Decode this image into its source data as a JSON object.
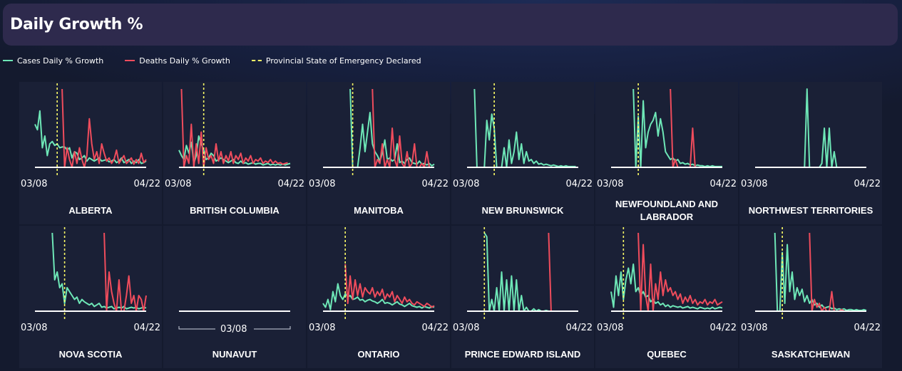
{
  "header": {
    "title": "Daily Growth %"
  },
  "legend": [
    {
      "label": "Cases Daily % Growth",
      "color": "#6ee7b7",
      "dashed": false
    },
    {
      "label": "Deaths Daily % Growth",
      "color": "#ef4c5c",
      "dashed": false
    },
    {
      "label": "Provincial State of Emergency Declared",
      "color": "#ffff66",
      "dashed": true
    }
  ],
  "chart_data": [
    {
      "type": "line",
      "title": "ALBERTA",
      "x_start": "03/08",
      "x_end": "04/22",
      "emergency_day": 9,
      "series": [
        {
          "name": "Cases Daily % Growth",
          "color": "#6ee7b7",
          "start_day": 0,
          "values": [
            0.55,
            0.48,
            0.72,
            0.25,
            0.4,
            0.15,
            0.3,
            0.33,
            0.28,
            0.3,
            0.25,
            0.26,
            0.26,
            0.22,
            0.25,
            0.12,
            0.2,
            0.18,
            0.1,
            0.12,
            0.15,
            0.08,
            0.12,
            0.1,
            0.08,
            0.1,
            0.12,
            0.08,
            0.09,
            0.1,
            0.07,
            0.08,
            0.1,
            0.06,
            0.08,
            0.12,
            0.06,
            0.08,
            0.1,
            0.05,
            0.08,
            0.06,
            0.1,
            0.05,
            0.06,
            0.08
          ]
        },
        {
          "name": "Deaths Daily % Growth",
          "color": "#ef4c5c",
          "start_day": 11,
          "values": [
            1.0,
            0.0,
            0.25,
            0.1,
            0.0,
            0.2,
            0.05,
            0.25,
            0.1,
            0.0,
            0.15,
            0.62,
            0.3,
            0.1,
            0.2,
            0.05,
            0.3,
            0.18,
            0.08,
            0.12,
            0.05,
            0.1,
            0.22,
            0.05,
            0.1,
            0.15,
            0.05,
            0.08,
            0.12,
            0.04,
            0.1,
            0.05,
            0.18,
            0.06,
            0.1
          ]
        }
      ]
    },
    {
      "type": "line",
      "title": "BRITISH COLUMBIA",
      "x_start": "03/08",
      "x_end": "04/22",
      "emergency_day": 10,
      "series": [
        {
          "name": "Cases Daily % Growth",
          "color": "#6ee7b7",
          "start_day": 0,
          "values": [
            0.22,
            0.15,
            0.1,
            0.28,
            0.18,
            0.32,
            0.05,
            0.15,
            0.4,
            0.3,
            0.22,
            0.1,
            0.12,
            0.18,
            0.15,
            0.08,
            0.1,
            0.12,
            0.1,
            0.08,
            0.06,
            0.08,
            0.1,
            0.06,
            0.05,
            0.08,
            0.05,
            0.06,
            0.04,
            0.05,
            0.06,
            0.04,
            0.05,
            0.05,
            0.03,
            0.04,
            0.05,
            0.03,
            0.04,
            0.03,
            0.04,
            0.03,
            0.04,
            0.03,
            0.04,
            0.05
          ]
        },
        {
          "name": "Deaths Daily % Growth",
          "color": "#ef4c5c",
          "start_day": 1,
          "values": [
            1.0,
            0.0,
            0.15,
            0.05,
            0.55,
            0.0,
            0.3,
            0.05,
            0.45,
            0.0,
            0.25,
            0.1,
            0.15,
            0.05,
            0.3,
            0.08,
            0.2,
            0.05,
            0.15,
            0.08,
            0.2,
            0.05,
            0.15,
            0.1,
            0.18,
            0.05,
            0.12,
            0.08,
            0.15,
            0.05,
            0.1,
            0.08,
            0.12,
            0.05,
            0.08,
            0.06,
            0.1,
            0.05,
            0.08,
            0.05,
            0.06,
            0.04,
            0.05,
            0.06
          ]
        }
      ]
    },
    {
      "type": "line",
      "title": "MANITOBA",
      "x_start": "03/08",
      "x_end": "04/22",
      "emergency_day": 12,
      "series": [
        {
          "name": "Cases Daily % Growth",
          "color": "#6ee7b7",
          "start_day": 11,
          "values": [
            1.0,
            0.0,
            0.0,
            0.0,
            0.25,
            0.55,
            0.2,
            0.45,
            0.7,
            0.3,
            0.2,
            0.15,
            0.08,
            0.18,
            0.35,
            0.1,
            0.12,
            0.08,
            0.1,
            0.3,
            0.06,
            0.08,
            0.05,
            0.1,
            0.12,
            0.06,
            0.05,
            0.04,
            0.08,
            0.04,
            0.05,
            0.03,
            0.05,
            0.02,
            0.04
          ]
        },
        {
          "name": "Deaths Daily % Growth",
          "color": "#ef4c5c",
          "start_day": 20,
          "values": [
            1.0,
            0.0,
            0.1,
            0.05,
            0.3,
            0.0,
            0.1,
            0.0,
            0.5,
            0.1,
            0.0,
            0.4,
            0.05,
            0.0,
            0.2,
            0.0,
            0.05,
            0.3,
            0.0,
            0.0,
            0.05,
            0.0,
            0.2,
            0.0,
            0.0,
            0.0
          ]
        }
      ]
    },
    {
      "type": "line",
      "title": "NEW BRUNSWICK",
      "x_start": "03/08",
      "x_end": "04/22",
      "emergency_day": 11,
      "series": [
        {
          "name": "Cases Daily % Growth",
          "color": "#6ee7b7",
          "start_day": 3,
          "values": [
            1.0,
            0.0,
            0.0,
            0.0,
            0.0,
            0.6,
            0.35,
            0.68,
            0.5,
            0.0,
            0.0,
            0.0,
            0.25,
            0.0,
            0.35,
            0.05,
            0.2,
            0.45,
            0.1,
            0.3,
            0.05,
            0.2,
            0.08,
            0.1,
            0.05,
            0.08,
            0.04,
            0.05,
            0.03,
            0.04,
            0.03,
            0.02,
            0.03,
            0.02,
            0.01,
            0.02,
            0.01,
            0.02,
            0.01,
            0.01,
            0.01,
            0.01
          ]
        }
      ]
    },
    {
      "type": "line",
      "title": "NEWFOUNDLAND AND\nLABRADOR",
      "x_start": "03/08",
      "x_end": "04/22",
      "emergency_day": 11,
      "series": [
        {
          "name": "Cases Daily % Growth",
          "color": "#6ee7b7",
          "start_day": 9,
          "values": [
            1.0,
            0.0,
            0.65,
            0.0,
            0.85,
            0.25,
            0.45,
            0.55,
            0.6,
            0.7,
            0.4,
            0.62,
            0.45,
            0.2,
            0.15,
            0.1,
            0.12,
            0.08,
            0.1,
            0.05,
            0.06,
            0.04,
            0.05,
            0.03,
            0.04,
            0.02,
            0.03,
            0.02,
            0.02,
            0.01,
            0.02,
            0.01,
            0.02,
            0.01,
            0.01,
            0.01,
            0.01
          ]
        },
        {
          "name": "Deaths Daily % Growth",
          "color": "#ef4c5c",
          "start_day": 24,
          "values": [
            1.0,
            0.0,
            0.1,
            0.0,
            0.0,
            0.0,
            0.0,
            0.0,
            0.0,
            0.5,
            0.0,
            0.0,
            0.0,
            0.0,
            0.0,
            0.0,
            0.0,
            0.0,
            0.0,
            0.0,
            0.0,
            0.0
          ]
        }
      ]
    },
    {
      "type": "line",
      "title": "NORTHWEST TERRITORIES",
      "x_start": "03/08",
      "x_end": "04/22",
      "emergency_day": null,
      "series": [
        {
          "name": "Cases Daily % Growth",
          "color": "#6ee7b7",
          "start_day": 0,
          "values": [
            0,
            0,
            0,
            0,
            0,
            0,
            0,
            0,
            0,
            0,
            0,
            0,
            0,
            0,
            0,
            0,
            0,
            0,
            0,
            0,
            0,
            1.0,
            0,
            0,
            0,
            0,
            0,
            0.05,
            0.5,
            0,
            0.5,
            0,
            0.2,
            0,
            0,
            0,
            0,
            0,
            0,
            0,
            0,
            0,
            0,
            0,
            0,
            0
          ]
        }
      ]
    },
    {
      "type": "line",
      "title": "NOVA SCOTIA",
      "x_start": "03/08",
      "x_end": "04/22",
      "emergency_day": 12,
      "series": [
        {
          "name": "Cases Daily % Growth",
          "color": "#6ee7b7",
          "start_day": 7,
          "values": [
            1.0,
            0.4,
            0.5,
            0.3,
            0.35,
            0.1,
            0.3,
            0.25,
            0.2,
            0.15,
            0.18,
            0.1,
            0.15,
            0.12,
            0.1,
            0.08,
            0.1,
            0.06,
            0.08,
            0.1,
            0.05,
            0.06,
            0.04,
            0.05,
            0.06,
            0.03,
            0.04,
            0.05,
            0.04,
            0.06,
            0.03,
            0.04,
            0.05,
            0.04,
            0.05,
            0.03,
            0.04,
            0.05,
            0.04
          ]
        },
        {
          "name": "Deaths Daily % Growth",
          "color": "#ef4c5c",
          "start_day": 28,
          "values": [
            1.0,
            0.0,
            0.5,
            0.25,
            0.1,
            0.0,
            0.4,
            0.0,
            0.0,
            0.2,
            0.45,
            0.1,
            0.2,
            0.0,
            0.2,
            0.15,
            0.0,
            0.2
          ]
        }
      ]
    },
    {
      "type": "line",
      "title": "NUNAVUT",
      "x_start": "03/08",
      "x_end": "",
      "emergency_day": null,
      "series": []
    },
    {
      "type": "line",
      "title": "ONTARIO",
      "x_start": "03/08",
      "x_end": "04/22",
      "emergency_day": 9,
      "series": [
        {
          "name": "Cases Daily % Growth",
          "color": "#6ee7b7",
          "start_day": 0,
          "values": [
            0.1,
            0.05,
            0.15,
            0.02,
            0.25,
            0.12,
            0.35,
            0.2,
            0.15,
            0.22,
            0.18,
            0.2,
            0.15,
            0.16,
            0.18,
            0.14,
            0.15,
            0.12,
            0.14,
            0.15,
            0.13,
            0.12,
            0.1,
            0.12,
            0.15,
            0.1,
            0.11,
            0.1,
            0.08,
            0.1,
            0.12,
            0.09,
            0.08,
            0.06,
            0.08,
            0.1,
            0.07,
            0.06,
            0.05,
            0.06,
            0.04,
            0.06,
            0.05,
            0.04,
            0.06,
            0.05
          ]
        },
        {
          "name": "Deaths Daily % Growth",
          "color": "#ef4c5c",
          "start_day": 9,
          "values": [
            0.6,
            0.1,
            0.45,
            0.15,
            0.4,
            0.2,
            0.35,
            0.18,
            0.3,
            0.25,
            0.22,
            0.3,
            0.18,
            0.25,
            0.2,
            0.28,
            0.15,
            0.22,
            0.18,
            0.25,
            0.12,
            0.2,
            0.15,
            0.1,
            0.18,
            0.12,
            0.15,
            0.1,
            0.08,
            0.12,
            0.1,
            0.08,
            0.06,
            0.1,
            0.08,
            0.05,
            0.07
          ]
        }
      ]
    },
    {
      "type": "line",
      "title": "PRINCE EDWARD ISLAND",
      "x_start": "03/08",
      "x_end": "04/22",
      "emergency_day": 7,
      "series": [
        {
          "name": "Cases Daily % Growth",
          "color": "#6ee7b7",
          "start_day": 7,
          "values": [
            1.0,
            0.95,
            0.0,
            0.15,
            0.0,
            0.3,
            0.0,
            0.5,
            0.0,
            0.4,
            0.0,
            0.45,
            0.0,
            0.4,
            0.0,
            0.2,
            0.0,
            0.05,
            0.0,
            0.0,
            0.03,
            0.0,
            0.02,
            0.0,
            0.0,
            0.01,
            0.0,
            0.0,
            0.0,
            0.0,
            0.0,
            0.0,
            0.0,
            0.0,
            0.0,
            0.0,
            0.0,
            0.0,
            0.0
          ]
        },
        {
          "name": "Deaths Daily % Growth",
          "color": "#ef4c5c",
          "start_day": 33,
          "values": [
            1.0,
            0.0
          ]
        }
      ]
    },
    {
      "type": "line",
      "title": "QUEBEC",
      "x_start": "03/08",
      "x_end": "04/22",
      "emergency_day": 5,
      "series": [
        {
          "name": "Cases Daily % Growth",
          "color": "#6ee7b7",
          "start_day": 0,
          "values": [
            0.25,
            0.05,
            0.45,
            0.2,
            0.5,
            0.15,
            0.4,
            0.55,
            0.35,
            0.6,
            0.25,
            0.3,
            0.2,
            0.25,
            0.18,
            0.2,
            0.12,
            0.15,
            0.1,
            0.12,
            0.08,
            0.1,
            0.06,
            0.08,
            0.05,
            0.07,
            0.06,
            0.05,
            0.06,
            0.04,
            0.05,
            0.06,
            0.04,
            0.05,
            0.04,
            0.03,
            0.05,
            0.04,
            0.03,
            0.04,
            0.03,
            0.05,
            0.03,
            0.04,
            0.05,
            0.04
          ]
        },
        {
          "name": "Deaths Daily % Growth",
          "color": "#ef4c5c",
          "start_day": 11,
          "values": [
            1.0,
            0.0,
            0.85,
            0.2,
            0.0,
            0.6,
            0.0,
            0.35,
            0.15,
            0.5,
            0.2,
            0.4,
            0.25,
            0.3,
            0.2,
            0.25,
            0.15,
            0.22,
            0.1,
            0.18,
            0.12,
            0.2,
            0.1,
            0.15,
            0.08,
            0.12,
            0.1,
            0.15,
            0.08,
            0.12,
            0.1,
            0.15,
            0.08,
            0.1,
            0.12
          ]
        }
      ]
    },
    {
      "type": "line",
      "title": "SASKATCHEWAN",
      "x_start": "03/08",
      "x_end": "04/22",
      "emergency_day": 11,
      "series": [
        {
          "name": "Cases Daily % Growth",
          "color": "#6ee7b7",
          "start_day": 8,
          "values": [
            1.0,
            0.0,
            0.0,
            0.75,
            0.1,
            0.85,
            0.25,
            0.5,
            0.15,
            0.3,
            0.2,
            0.28,
            0.12,
            0.2,
            0.1,
            0.15,
            0.08,
            0.1,
            0.05,
            0.08,
            0.04,
            0.05,
            0.06,
            0.03,
            0.04,
            0.02,
            0.03,
            0.02,
            0.03,
            0.01,
            0.02,
            0.02,
            0.01,
            0.02,
            0.01,
            0.01,
            0.02,
            0.01
          ]
        },
        {
          "name": "Deaths Daily % Growth",
          "color": "#ef4c5c",
          "start_day": 22,
          "values": [
            1.0,
            0.0,
            0.15,
            0.05,
            0.1,
            0.0,
            0.05,
            0.0,
            0.0,
            0.25,
            0.0,
            0.0,
            0.0,
            0.02,
            0.0,
            0.0,
            0.0,
            0.0,
            0.0,
            0.0,
            0.0,
            0.0,
            0.0,
            0.0
          ]
        }
      ]
    }
  ]
}
